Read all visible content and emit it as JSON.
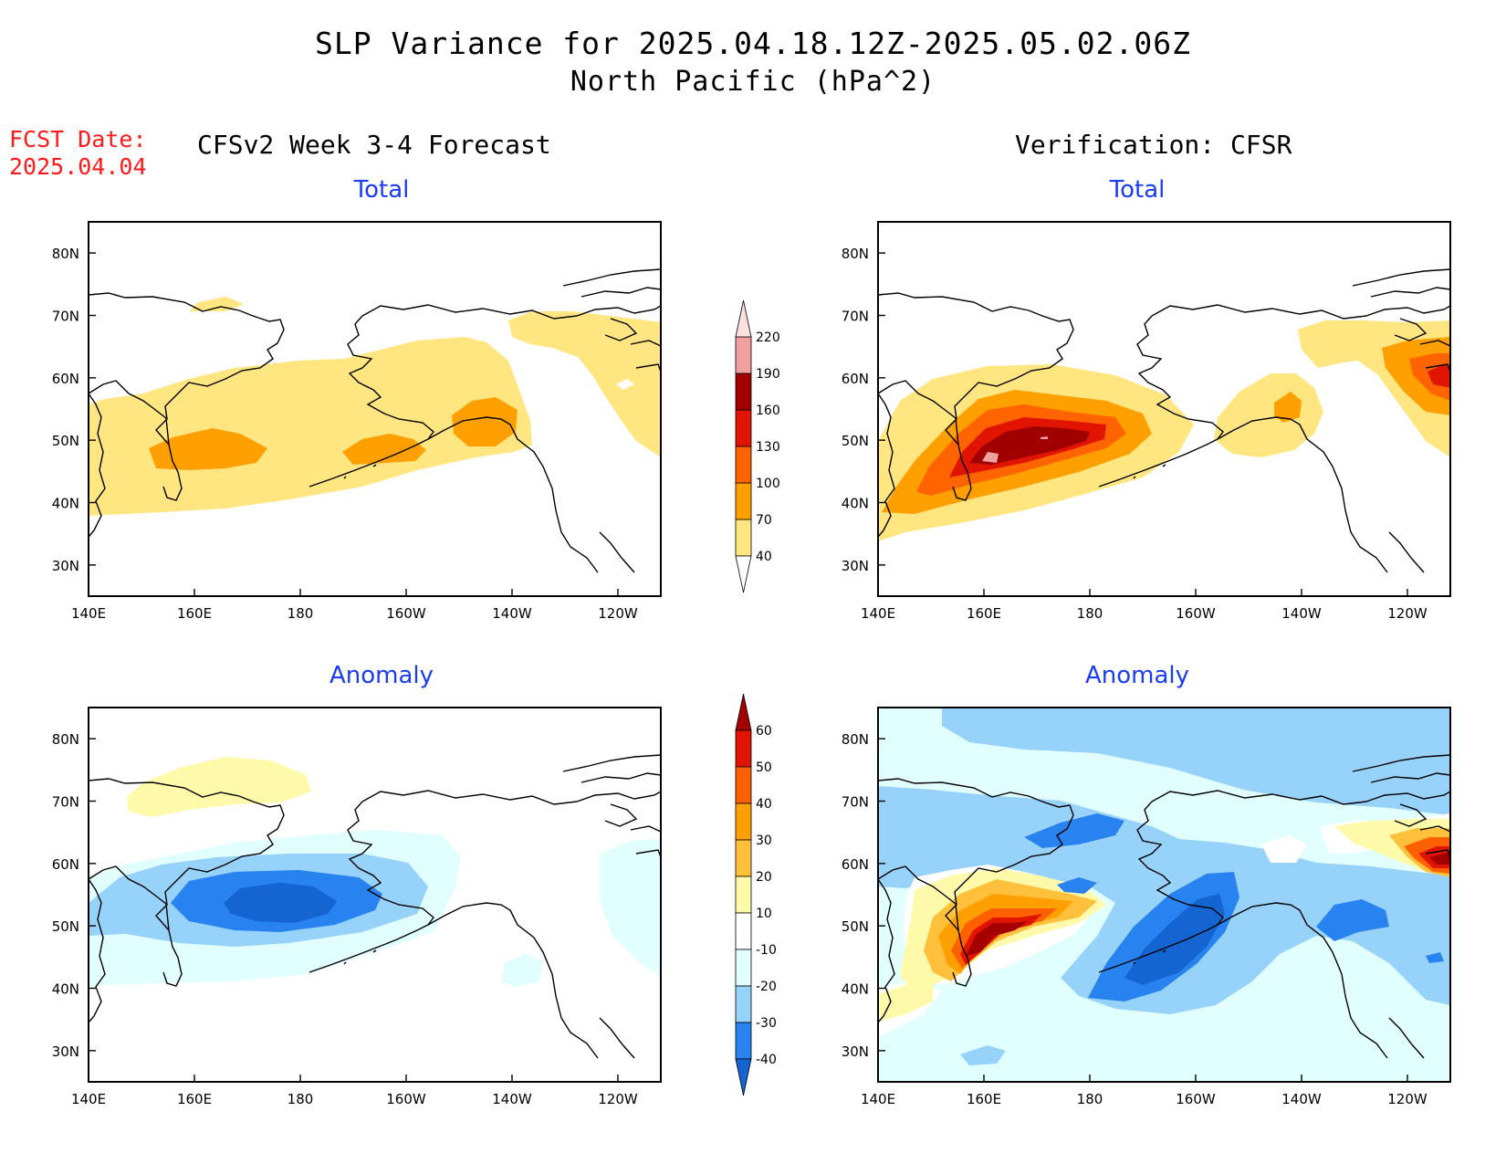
{
  "header": {
    "title": "SLP Variance for 2025.04.18.12Z-2025.05.02.06Z",
    "subtitle": "North Pacific (hPa^2)",
    "fcst_label": "FCST Date:",
    "fcst_date": "2025.04.04"
  },
  "columns": {
    "left": "CFSv2 Week 3-4 Forecast",
    "right": "Verification: CFSR"
  },
  "panels": [
    {
      "id": "fcst-total",
      "label": "Total"
    },
    {
      "id": "cfsr-total",
      "label": "Total"
    },
    {
      "id": "fcst-anom",
      "label": "Anomaly"
    },
    {
      "id": "cfsr-anom",
      "label": "Anomaly"
    }
  ],
  "axes": {
    "lon_ticks": [
      "140E",
      "160E",
      "180",
      "160W",
      "140W",
      "120W"
    ],
    "lat_ticks": [
      "80N",
      "70N",
      "60N",
      "50N",
      "40N",
      "30N"
    ]
  },
  "colorbars": {
    "total": {
      "levels": [
        "40",
        "70",
        "100",
        "130",
        "160",
        "190",
        "220"
      ],
      "colors": [
        "#ffe680",
        "#ffa000",
        "#ff6400",
        "#e01400",
        "#a00000",
        "#f0a0a0",
        "#fde0e0"
      ]
    },
    "anomaly": {
      "levels": [
        "-40",
        "-30",
        "-20",
        "-10",
        "10",
        "20",
        "30",
        "40",
        "50",
        "60"
      ],
      "colors": [
        "#1464d2",
        "#2882f0",
        "#96d2fa",
        "#e1ffff",
        "#ffffff",
        "#fffaaa",
        "#ffc03c",
        "#ffa000",
        "#ff6000",
        "#e11400",
        "#a50000"
      ]
    }
  }
}
